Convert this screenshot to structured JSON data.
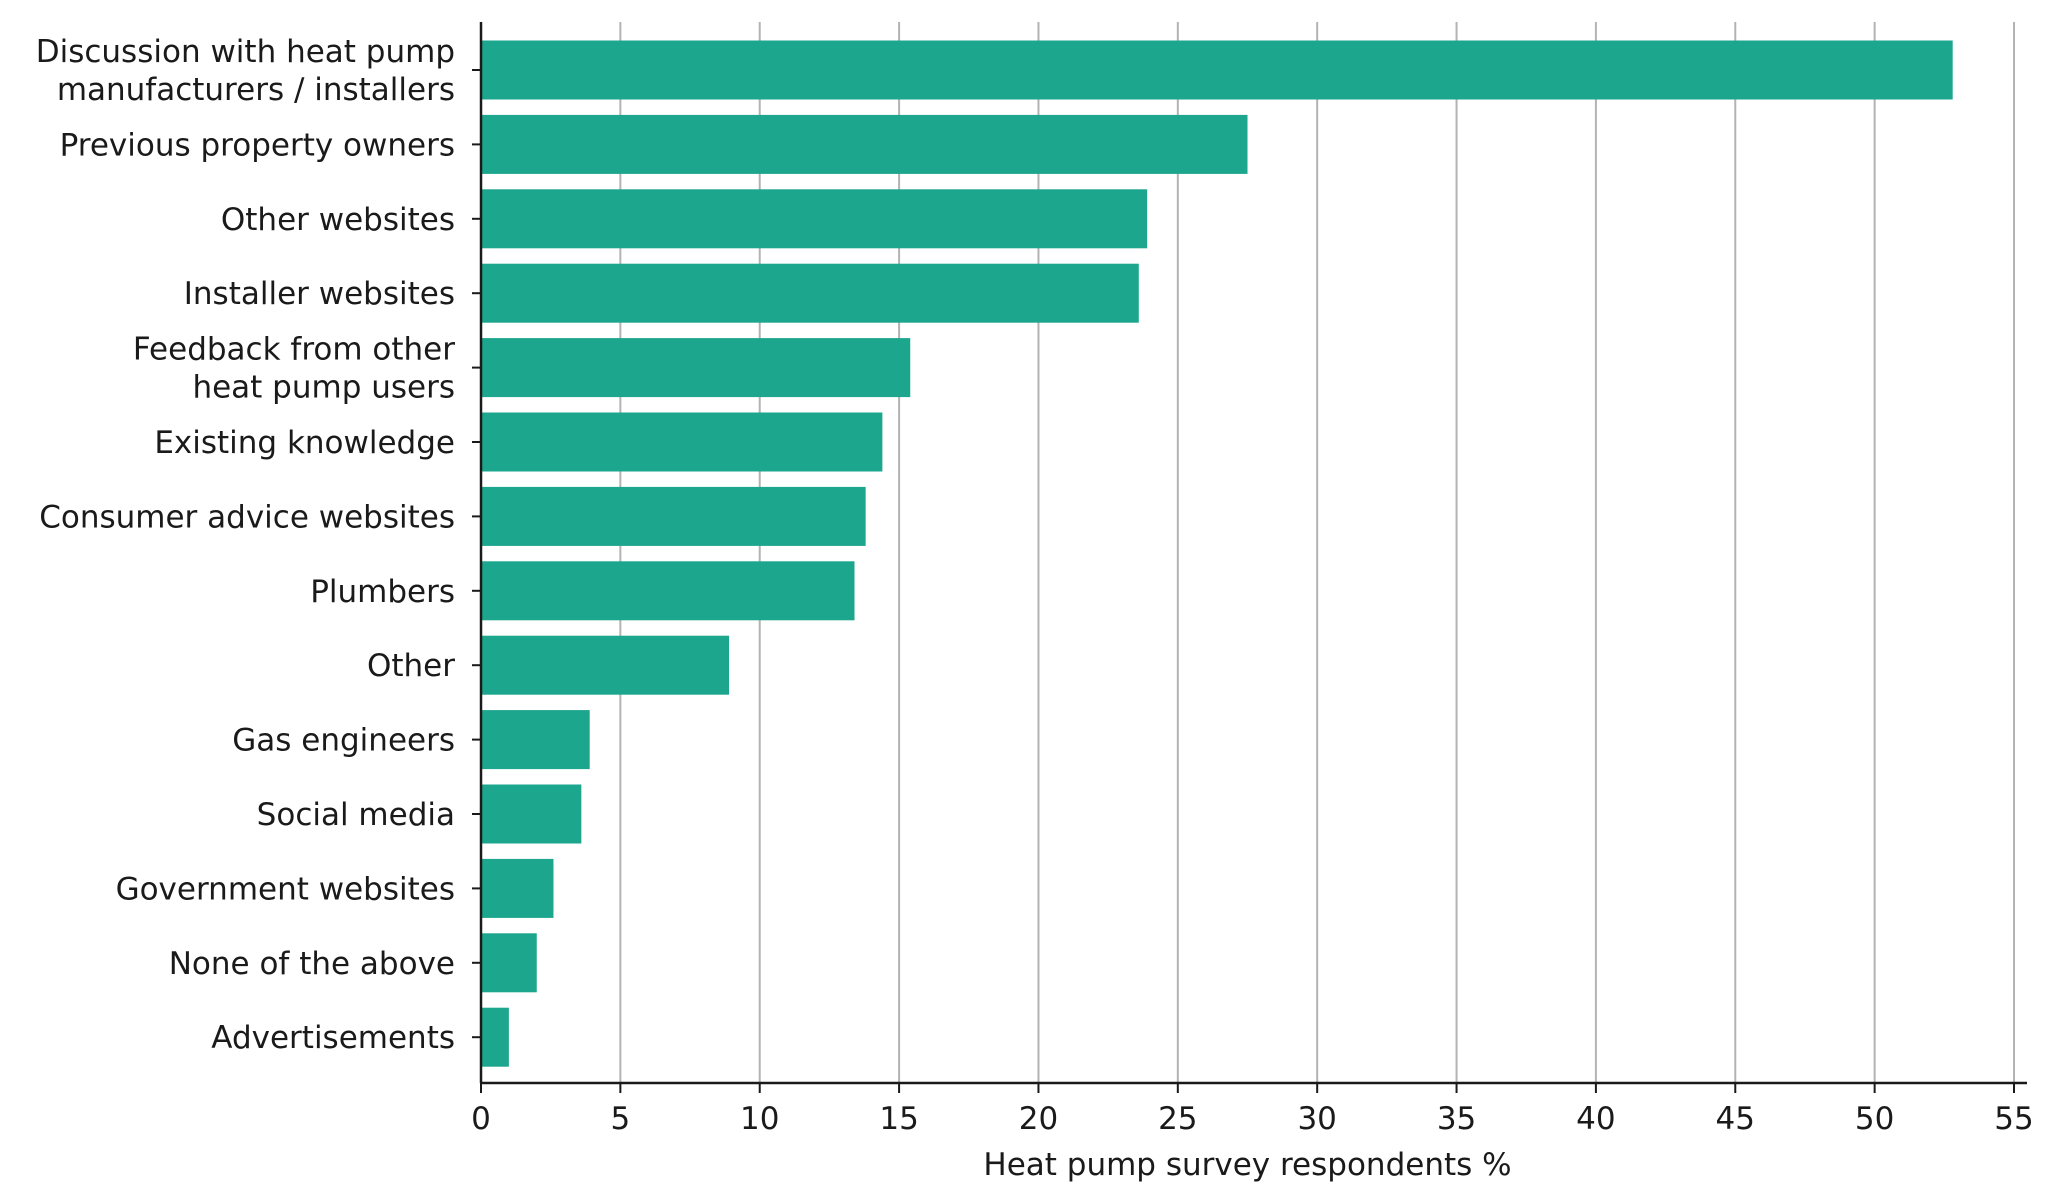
{
  "chart_data": {
    "type": "bar",
    "orientation": "horizontal",
    "categories": [
      [
        "Discussion with heat pump",
        "manufacturers / installers"
      ],
      [
        "Previous property owners"
      ],
      [
        "Other websites"
      ],
      [
        "Installer websites"
      ],
      [
        "Feedback from other",
        "heat pump users"
      ],
      [
        "Existing knowledge"
      ],
      [
        "Consumer advice websites"
      ],
      [
        "Plumbers"
      ],
      [
        "Other"
      ],
      [
        "Gas engineers"
      ],
      [
        "Social media"
      ],
      [
        "Government websites"
      ],
      [
        "None of the above"
      ],
      [
        "Advertisements"
      ]
    ],
    "values": [
      52.8,
      27.5,
      23.9,
      23.6,
      15.4,
      14.4,
      13.8,
      13.4,
      8.9,
      3.9,
      3.6,
      2.6,
      2.0,
      1.0
    ],
    "xlabel": "Heat pump survey respondents %",
    "ylabel": "",
    "xlim": [
      0,
      55
    ],
    "xticks": [
      "0",
      "5",
      "10",
      "15",
      "20",
      "25",
      "30",
      "35",
      "40",
      "45",
      "50",
      "55"
    ],
    "grid": "vertical",
    "bar_color": "#1ba68d",
    "grid_color": "#b3b3b3",
    "axis_color": "#1a1a1a"
  }
}
